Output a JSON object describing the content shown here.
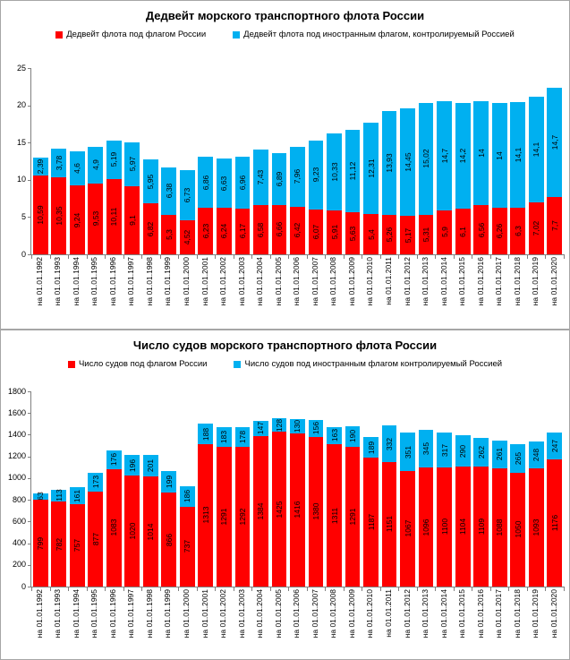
{
  "charts": [
    {
      "title": "Дедвейт морского транспортного флота России",
      "legend": [
        {
          "label": "Дедвейт флота под флагом России",
          "color": "#FF0000"
        },
        {
          "label": "Дедвейт флота под иностранным флагом, контролируемый Россией",
          "color": "#00B0F0"
        }
      ],
      "chart_data": {
        "type": "bar",
        "stacked": true,
        "grid": false,
        "legend_position": "top",
        "ylim": [
          0,
          25
        ],
        "ystep": 5,
        "categories": [
          "на 01.01.1992",
          "на 01.01.1993",
          "на 01.01.1994",
          "на 01.01.1995",
          "на 01.01.1996",
          "на 01.01.1997",
          "на 01.01.1998",
          "на 01.01.1999",
          "на 01.01.2000",
          "на 01.01.2001",
          "на 01.01.2002",
          "на 01.01.2003",
          "на 01.01.2004",
          "на 01.01.2005",
          "на 01.01.2006",
          "на 01.01.2007",
          "на 01.01.2008",
          "на 01.01.2009",
          "на 01.01.2010",
          "на 01.01.2011",
          "на 01.01.2012",
          "на 01.01.2013",
          "на 01.01.2014",
          "на 01.01.2015",
          "на 01.01.2016",
          "на 01.01.2017",
          "на 01.01.2018",
          "на 01.01.2019",
          "на 01.01.2020"
        ],
        "series": [
          {
            "name": "Дедвейт флота под флагом России",
            "color": "#FF0000",
            "values": [
              "10,59",
              "10,35",
              "9,24",
              "9,53",
              "10,11",
              "9,1",
              "6,82",
              "5,3",
              "4,52",
              "6,23",
              "6,24",
              "6,17",
              "6,58",
              "6,66",
              "6,42",
              "6,07",
              "5,91",
              "5,63",
              "5,4",
              "5,26",
              "5,17",
              "5,31",
              "5,9",
              "6,1",
              "6,56",
              "6,26",
              "6,3",
              "7,02",
              "7,7"
            ]
          },
          {
            "name": "Дедвейт флота под иностранным флагом, контролируемый Россией",
            "color": "#00B0F0",
            "values": [
              "2,39",
              "3,78",
              "4,6",
              "4,9",
              "5,19",
              "5,97",
              "5,95",
              "6,38",
              "6,73",
              "6,86",
              "6,63",
              "6,96",
              "7,43",
              "6,89",
              "7,96",
              "9,23",
              "10,33",
              "11,12",
              "12,31",
              "13,93",
              "14,45",
              "15,02",
              "14,7",
              "14,2",
              "14",
              "14",
              "14,1",
              "14,1",
              "14,7"
            ]
          }
        ]
      }
    },
    {
      "title": "Число судов морского транспортного флота России",
      "legend": [
        {
          "label": "Число судов под флагом России",
          "color": "#FF0000"
        },
        {
          "label": "Число судов под иностранным флагом контролируемый Россией",
          "color": "#00B0F0"
        }
      ],
      "chart_data": {
        "type": "bar",
        "stacked": true,
        "grid": false,
        "legend_position": "top",
        "ylim": [
          0,
          1800
        ],
        "ystep": 200,
        "categories": [
          "на 01.01.1992",
          "на 01.01.1993",
          "на 01.01.1994",
          "на 01.01.1995",
          "на 01.01.1996",
          "на 01.01.1997",
          "на 01.01.1998",
          "на 01.01.1999",
          "на 01.01.2000",
          "на 01.01.2001",
          "на 01.01.2002",
          "на 01.01.2003",
          "на 01.01.2004",
          "на 01.01.2005",
          "на 01.01.2006",
          "на 01.01.2007",
          "на 01.01.2008",
          "на 01.01.2009",
          "на 01.01.2010",
          "на 01.01.2011",
          "на 01.01.2012",
          "на 01.01.2013",
          "на 01.01.2014",
          "на 01.01.2015",
          "на 01.01.2016",
          "на 01.01.2017",
          "на 01.01.2018",
          "на 01.01.2019",
          "на 01.01.2020"
        ],
        "series": [
          {
            "name": "Число судов под флагом России",
            "color": "#FF0000",
            "values": [
              "799",
              "782",
              "757",
              "877",
              "1083",
              "1020",
              "1014",
              "866",
              "737",
              "1313",
              "1291",
              "1292",
              "1384",
              "1425",
              "1416",
              "1380",
              "1311",
              "1291",
              "1187",
              "1151",
              "1067",
              "1096",
              "1100",
              "1104",
              "1109",
              "1088",
              "1050",
              "1093",
              "1176"
            ]
          },
          {
            "name": "Число судов под иностранным флагом контролируемый Россией",
            "color": "#00B0F0",
            "values": [
              "63",
              "113",
              "161",
              "173",
              "176",
              "196",
              "201",
              "199",
              "186",
              "188",
              "183",
              "178",
              "147",
              "128",
              "130",
              "156",
              "163",
              "190",
              "189",
              "332",
              "351",
              "345",
              "317",
              "290",
              "262",
              "261",
              "265",
              "248",
              "247"
            ]
          }
        ]
      }
    }
  ]
}
